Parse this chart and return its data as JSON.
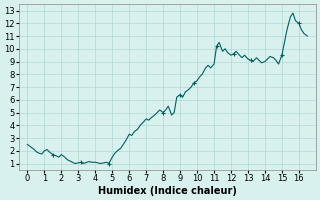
{
  "xlabel": "Humidex (Indice chaleur)",
  "ylabel": "",
  "bg_color": "#d8f0ee",
  "line_color": "#006060",
  "grid_color": "#b0d8d4",
  "xlim": [
    -0.5,
    17.0
  ],
  "ylim": [
    0.5,
    13.5
  ],
  "xticks": [
    0,
    1,
    2,
    3,
    4,
    5,
    6,
    7,
    8,
    9,
    10,
    11,
    12,
    13,
    14,
    15,
    16
  ],
  "yticks": [
    1,
    2,
    3,
    4,
    5,
    6,
    7,
    8,
    9,
    10,
    11,
    12,
    13
  ],
  "x": [
    0.0,
    0.2,
    0.4,
    0.55,
    0.7,
    0.85,
    1.0,
    1.15,
    1.3,
    1.5,
    1.7,
    1.85,
    2.0,
    2.1,
    2.2,
    2.35,
    2.5,
    2.65,
    2.8,
    3.0,
    3.15,
    3.3,
    3.5,
    3.65,
    3.8,
    4.0,
    4.15,
    4.3,
    4.5,
    4.65,
    4.8,
    5.0,
    5.15,
    5.3,
    5.5,
    5.65,
    5.8,
    6.0,
    6.15,
    6.3,
    6.5,
    6.65,
    6.8,
    7.0,
    7.15,
    7.3,
    7.5,
    7.65,
    7.8,
    8.0,
    8.15,
    8.3,
    8.5,
    8.65,
    8.8,
    9.0,
    9.15,
    9.3,
    9.5,
    9.65,
    9.8,
    10.0,
    10.15,
    10.3,
    10.5,
    10.65,
    10.8,
    11.0,
    11.15,
    11.3,
    11.5,
    11.65,
    11.8,
    12.0,
    12.15,
    12.3,
    12.5,
    12.65,
    12.8,
    13.0,
    13.15,
    13.3,
    13.5,
    13.65,
    13.8,
    14.0,
    14.15,
    14.3,
    14.5,
    14.65,
    14.8,
    15.0,
    15.15,
    15.3,
    15.5,
    15.65,
    15.8,
    16.0,
    16.15,
    16.3,
    16.5
  ],
  "y": [
    2.5,
    2.3,
    2.1,
    1.9,
    1.8,
    1.75,
    2.0,
    2.1,
    1.9,
    1.7,
    1.6,
    1.5,
    1.7,
    1.6,
    1.5,
    1.3,
    1.2,
    1.1,
    1.0,
    1.05,
    1.1,
    1.0,
    1.1,
    1.15,
    1.1,
    1.1,
    1.05,
    1.0,
    1.05,
    1.1,
    1.0,
    1.5,
    1.8,
    2.0,
    2.2,
    2.5,
    2.8,
    3.3,
    3.2,
    3.5,
    3.7,
    4.0,
    4.2,
    4.5,
    4.4,
    4.6,
    4.8,
    5.0,
    5.2,
    5.0,
    5.2,
    5.5,
    4.8,
    5.0,
    6.2,
    6.4,
    6.2,
    6.6,
    6.8,
    7.0,
    7.3,
    7.5,
    7.8,
    8.0,
    8.5,
    8.7,
    8.5,
    8.8,
    10.2,
    10.5,
    9.8,
    10.0,
    9.7,
    9.5,
    9.6,
    9.8,
    9.5,
    9.3,
    9.5,
    9.2,
    9.1,
    9.0,
    9.3,
    9.1,
    8.9,
    9.0,
    9.2,
    9.4,
    9.3,
    9.1,
    8.8,
    9.5,
    10.5,
    11.5,
    12.5,
    12.8,
    12.2,
    12.0,
    11.5,
    11.2,
    11.0
  ]
}
